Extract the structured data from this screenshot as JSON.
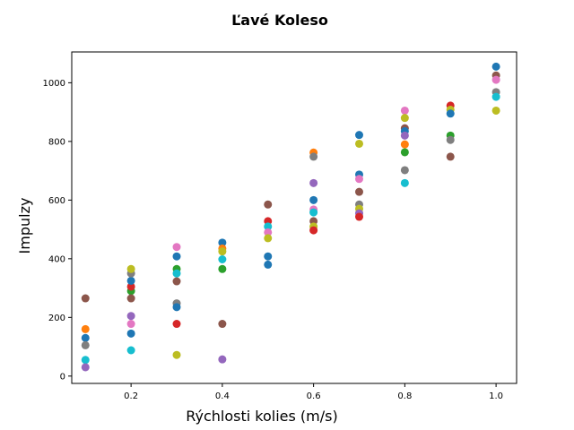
{
  "chart_data": {
    "type": "scatter",
    "title": "Ľavé Koleso",
    "xlabel": "Rýchlosti kolies (m/s)",
    "ylabel": "Impulzy",
    "xlim": [
      0.07,
      1.045
    ],
    "ylim": [
      -25,
      1105
    ],
    "xticks": [
      0.2,
      0.4,
      0.6,
      0.8,
      1.0
    ],
    "xtick_labels": [
      "0.2",
      "0.4",
      "0.6",
      "0.8",
      "1.0"
    ],
    "yticks": [
      0,
      200,
      400,
      600,
      800,
      1000
    ],
    "ytick_labels": [
      "0",
      "200",
      "400",
      "600",
      "800",
      "1000"
    ],
    "grid": false,
    "legend": "none",
    "points": [
      {
        "x": 0.1,
        "y": 130,
        "color": "#1f77b4"
      },
      {
        "x": 0.1,
        "y": 160,
        "color": "#ff7f0e"
      },
      {
        "x": 0.1,
        "y": 265,
        "color": "#8c564b"
      },
      {
        "x": 0.1,
        "y": 105,
        "color": "#7f7f7f"
      },
      {
        "x": 0.1,
        "y": 55,
        "color": "#17becf"
      },
      {
        "x": 0.1,
        "y": 30,
        "color": "#9467bd"
      },
      {
        "x": 0.2,
        "y": 290,
        "color": "#2ca02c"
      },
      {
        "x": 0.2,
        "y": 305,
        "color": "#d62728"
      },
      {
        "x": 0.2,
        "y": 325,
        "color": "#1f77b4"
      },
      {
        "x": 0.2,
        "y": 350,
        "color": "#7f7f7f"
      },
      {
        "x": 0.2,
        "y": 365,
        "color": "#bcbd22"
      },
      {
        "x": 0.2,
        "y": 265,
        "color": "#8c564b"
      },
      {
        "x": 0.2,
        "y": 205,
        "color": "#9467bd"
      },
      {
        "x": 0.2,
        "y": 178,
        "color": "#e377c2"
      },
      {
        "x": 0.2,
        "y": 145,
        "color": "#1f77b4"
      },
      {
        "x": 0.2,
        "y": 88,
        "color": "#17becf"
      },
      {
        "x": 0.3,
        "y": 440,
        "color": "#e377c2"
      },
      {
        "x": 0.3,
        "y": 408,
        "color": "#1f77b4"
      },
      {
        "x": 0.3,
        "y": 365,
        "color": "#2ca02c"
      },
      {
        "x": 0.3,
        "y": 350,
        "color": "#17becf"
      },
      {
        "x": 0.3,
        "y": 323,
        "color": "#8c564b"
      },
      {
        "x": 0.3,
        "y": 248,
        "color": "#7f7f7f"
      },
      {
        "x": 0.3,
        "y": 235,
        "color": "#1f77b4"
      },
      {
        "x": 0.3,
        "y": 178,
        "color": "#d62728"
      },
      {
        "x": 0.3,
        "y": 72,
        "color": "#bcbd22"
      },
      {
        "x": 0.4,
        "y": 455,
        "color": "#1f77b4"
      },
      {
        "x": 0.4,
        "y": 435,
        "color": "#ff7f0e"
      },
      {
        "x": 0.4,
        "y": 425,
        "color": "#bcbd22"
      },
      {
        "x": 0.4,
        "y": 398,
        "color": "#17becf"
      },
      {
        "x": 0.4,
        "y": 365,
        "color": "#2ca02c"
      },
      {
        "x": 0.4,
        "y": 178,
        "color": "#8c564b"
      },
      {
        "x": 0.4,
        "y": 57,
        "color": "#9467bd"
      },
      {
        "x": 0.5,
        "y": 585,
        "color": "#8c564b"
      },
      {
        "x": 0.5,
        "y": 528,
        "color": "#d62728"
      },
      {
        "x": 0.5,
        "y": 510,
        "color": "#17becf"
      },
      {
        "x": 0.5,
        "y": 490,
        "color": "#e377c2"
      },
      {
        "x": 0.5,
        "y": 470,
        "color": "#bcbd22"
      },
      {
        "x": 0.5,
        "y": 408,
        "color": "#1f77b4"
      },
      {
        "x": 0.5,
        "y": 380,
        "color": "#1f77b4"
      },
      {
        "x": 0.6,
        "y": 762,
        "color": "#ff7f0e"
      },
      {
        "x": 0.6,
        "y": 748,
        "color": "#7f7f7f"
      },
      {
        "x": 0.6,
        "y": 658,
        "color": "#9467bd"
      },
      {
        "x": 0.6,
        "y": 600,
        "color": "#1f77b4"
      },
      {
        "x": 0.6,
        "y": 568,
        "color": "#e377c2"
      },
      {
        "x": 0.6,
        "y": 558,
        "color": "#17becf"
      },
      {
        "x": 0.6,
        "y": 528,
        "color": "#8c564b"
      },
      {
        "x": 0.6,
        "y": 510,
        "color": "#bcbd22"
      },
      {
        "x": 0.6,
        "y": 497,
        "color": "#d62728"
      },
      {
        "x": 0.7,
        "y": 822,
        "color": "#1f77b4"
      },
      {
        "x": 0.7,
        "y": 792,
        "color": "#bcbd22"
      },
      {
        "x": 0.7,
        "y": 687,
        "color": "#1f77b4"
      },
      {
        "x": 0.7,
        "y": 672,
        "color": "#e377c2"
      },
      {
        "x": 0.7,
        "y": 628,
        "color": "#8c564b"
      },
      {
        "x": 0.7,
        "y": 585,
        "color": "#7f7f7f"
      },
      {
        "x": 0.7,
        "y": 570,
        "color": "#bcbd22"
      },
      {
        "x": 0.7,
        "y": 555,
        "color": "#9467bd"
      },
      {
        "x": 0.7,
        "y": 543,
        "color": "#d62728"
      },
      {
        "x": 0.8,
        "y": 905,
        "color": "#e377c2"
      },
      {
        "x": 0.8,
        "y": 880,
        "color": "#bcbd22"
      },
      {
        "x": 0.8,
        "y": 845,
        "color": "#8c564b"
      },
      {
        "x": 0.8,
        "y": 835,
        "color": "#1f77b4"
      },
      {
        "x": 0.8,
        "y": 820,
        "color": "#9467bd"
      },
      {
        "x": 0.8,
        "y": 790,
        "color": "#ff7f0e"
      },
      {
        "x": 0.8,
        "y": 763,
        "color": "#2ca02c"
      },
      {
        "x": 0.8,
        "y": 702,
        "color": "#7f7f7f"
      },
      {
        "x": 0.8,
        "y": 658,
        "color": "#17becf"
      },
      {
        "x": 0.9,
        "y": 922,
        "color": "#d62728"
      },
      {
        "x": 0.9,
        "y": 908,
        "color": "#bcbd22"
      },
      {
        "x": 0.9,
        "y": 895,
        "color": "#1f77b4"
      },
      {
        "x": 0.9,
        "y": 820,
        "color": "#2ca02c"
      },
      {
        "x": 0.9,
        "y": 805,
        "color": "#7f7f7f"
      },
      {
        "x": 0.9,
        "y": 748,
        "color": "#8c564b"
      },
      {
        "x": 1.0,
        "y": 1055,
        "color": "#1f77b4"
      },
      {
        "x": 1.0,
        "y": 1025,
        "color": "#8c564b"
      },
      {
        "x": 1.0,
        "y": 1010,
        "color": "#e377c2"
      },
      {
        "x": 1.0,
        "y": 968,
        "color": "#7f7f7f"
      },
      {
        "x": 1.0,
        "y": 952,
        "color": "#17becf"
      },
      {
        "x": 1.0,
        "y": 905,
        "color": "#bcbd22"
      }
    ]
  }
}
